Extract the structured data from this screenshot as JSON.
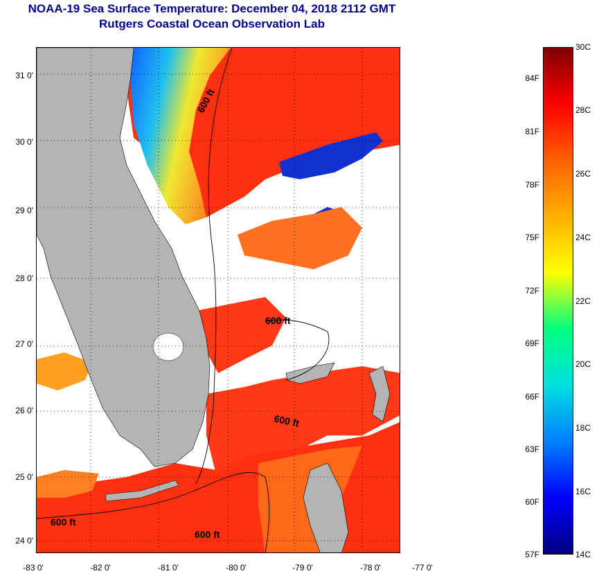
{
  "header": {
    "title_line1": "NOAA-19 Sea Surface Temperature:  December 04, 2018 2112 GMT",
    "title_line2": "Rutgers Coastal Ocean Observation Lab"
  },
  "map": {
    "lat_labels": [
      "31 0'",
      "30 0'",
      "29 0'",
      "28 0'",
      "27 0'",
      "26 0'",
      "25 0'",
      "24 0'"
    ],
    "lon_labels": [
      "-83 0'",
      "-82 0'",
      "-81 0'",
      "-80 0'",
      "-79 0'",
      "-78 0'",
      "-77 0'"
    ],
    "depth_contour_labels": [
      "600 ft",
      "600 ft",
      "600 ft",
      "600 ft",
      "600 ft"
    ],
    "colors": {
      "land": "#b4b4b4",
      "cloud": "#ffffff",
      "warm_water": "#ff3010",
      "orange_water": "#ff7818"
    }
  },
  "colorbar": {
    "fahrenheit_labels": [
      "84F",
      "81F",
      "78F",
      "75F",
      "72F",
      "69F",
      "66F",
      "63F",
      "60F",
      "57F"
    ],
    "celsius_labels": [
      "30C",
      "28C",
      "26C",
      "24C",
      "22C",
      "20C",
      "18C",
      "16C",
      "14C"
    ],
    "gradient_stops": [
      "#000080",
      "#0000ff",
      "#0080ff",
      "#00e0e0",
      "#00ff80",
      "#ffff00",
      "#ffb000",
      "#ff6000",
      "#ff0000",
      "#800000"
    ]
  }
}
